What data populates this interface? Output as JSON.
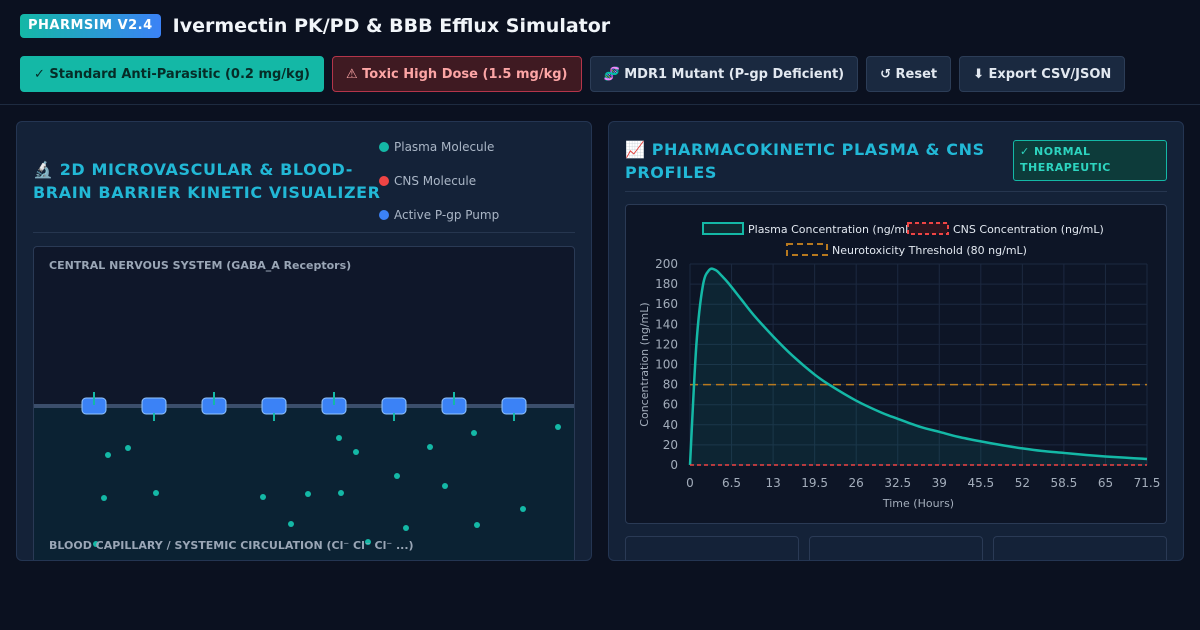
{
  "header": {
    "badge": "PHARMSIM V2.4",
    "title": "Ivermectin PK/PD & BBB Efflux Simulator"
  },
  "toolbar": {
    "standard": "✓ Standard Anti-Parasitic (0.2 mg/kg)",
    "toxic": "⚠ Toxic High Dose (1.5 mg/kg)",
    "mdr1": "🧬 MDR1 Mutant (P-gp Deficient)",
    "reset": "↺ Reset",
    "export": "⬇ Export CSV/JSON"
  },
  "left_panel": {
    "icon": "🔬",
    "title_line1": "2D MICROVASCULAR & BLOOD-",
    "title_line2": "BRAIN BARRIER KINETIC VISUALIZER",
    "legend": [
      {
        "label": "Plasma Molecule",
        "color": "#14b8a6"
      },
      {
        "label": "CNS Molecule",
        "color": "#ef4444"
      },
      {
        "label": "Active P-gp Pump",
        "color": "#3b82f6"
      }
    ],
    "cns_label": "CENTRAL NERVOUS SYSTEM (GABA_A Receptors)",
    "blood_label": "BLOOD CAPILLARY / SYSTEMIC CIRCULATION (Cl⁻ Cl⁻ Cl⁻ ...)"
  },
  "right_panel": {
    "icon": "📈",
    "title_line1": "PHARMACOKINETIC PLASMA & CNS",
    "title_line2": "PROFILES",
    "status_line1": "✓ NORMAL",
    "status_line2": "THERAPEUTIC"
  },
  "colors": {
    "plasma": "#14b8a6",
    "cns": "#ef4444",
    "threshold": "#b7791f",
    "pump": "#3b82f6"
  },
  "chart_data": {
    "type": "line",
    "xlabel": "Time (Hours)",
    "ylabel": "Concentration (ng/mL)",
    "xlim": [
      0,
      71.5
    ],
    "ylim": [
      0,
      200
    ],
    "x_ticks": [
      "0",
      "6.5",
      "13",
      "19.5",
      "26",
      "32.5",
      "39",
      "45.5",
      "52",
      "58.5",
      "65",
      "71.5"
    ],
    "y_ticks": [
      "0",
      "20",
      "40",
      "60",
      "80",
      "100",
      "120",
      "140",
      "160",
      "180",
      "200"
    ],
    "grid": true,
    "legend_position": "top",
    "series": [
      {
        "name": "Plasma Concentration (ng/mL)",
        "x": [
          0,
          1,
          2,
          3,
          4,
          5,
          6,
          8,
          10,
          13,
          16,
          19.5,
          22,
          26,
          30,
          32.5,
          36,
          39,
          42,
          45.5,
          49,
          52,
          55,
          58.5,
          62,
          65,
          68,
          71.5
        ],
        "y": [
          0,
          120,
          178,
          194,
          194,
          188,
          181,
          165,
          149,
          128,
          109,
          90,
          79,
          64,
          52,
          46,
          38,
          33,
          28,
          23.5,
          19.5,
          16.5,
          14,
          12,
          10,
          8.5,
          7.3,
          6
        ]
      },
      {
        "name": "CNS Concentration (ng/mL)",
        "x": [
          0,
          71.5
        ],
        "y": [
          0,
          0
        ]
      },
      {
        "name": "Neurotoxicity Threshold (80 ng/mL)",
        "x": [
          0,
          71.5
        ],
        "y": [
          80,
          80
        ]
      }
    ]
  }
}
